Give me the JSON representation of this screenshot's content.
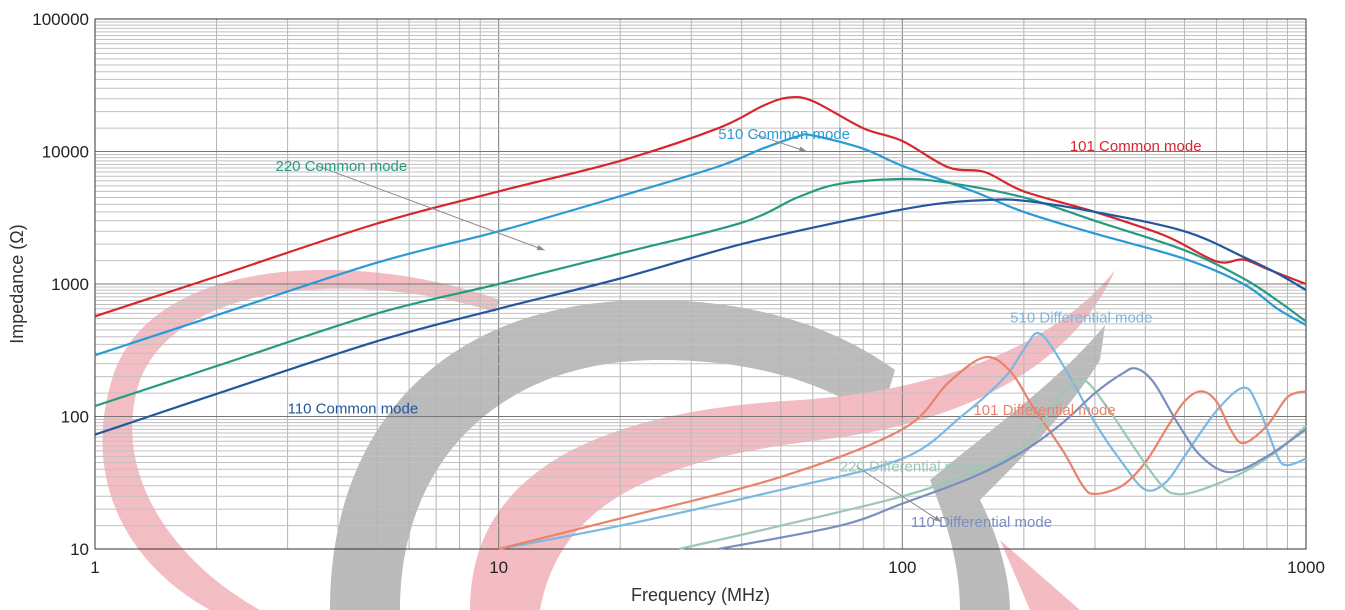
{
  "chart_data": {
    "type": "line",
    "title": "",
    "xlabel": "Frequency (MHz)",
    "ylabel": "Impedance (Ω)",
    "x_scale": "log",
    "y_scale": "log",
    "xlim": [
      1,
      1000
    ],
    "ylim": [
      10,
      100000
    ],
    "grid": true,
    "x_ticks": [
      {
        "value": 1,
        "label": "1"
      },
      {
        "value": 10,
        "label": "10"
      },
      {
        "value": 100,
        "label": "100"
      },
      {
        "value": 1000,
        "label": "1000"
      }
    ],
    "y_ticks": [
      {
        "value": 10,
        "label": "10"
      },
      {
        "value": 100,
        "label": "100"
      },
      {
        "value": 1000,
        "label": "1000"
      },
      {
        "value": 10000,
        "label": "10000"
      },
      {
        "value": 100000,
        "label": "100000"
      }
    ],
    "series": [
      {
        "name": "101 Common mode",
        "color": "#d7262e",
        "label_pos": [
          260,
          11000
        ],
        "points": [
          [
            1,
            570
          ],
          [
            2,
            1140
          ],
          [
            5,
            2860
          ],
          [
            10,
            5000
          ],
          [
            20,
            8500
          ],
          [
            35,
            15000
          ],
          [
            45,
            22000
          ],
          [
            52,
            25500
          ],
          [
            60,
            24000
          ],
          [
            80,
            15000
          ],
          [
            100,
            12000
          ],
          [
            130,
            7600
          ],
          [
            160,
            7000
          ],
          [
            200,
            5000
          ],
          [
            300,
            3500
          ],
          [
            450,
            2300
          ],
          [
            600,
            1480
          ],
          [
            700,
            1530
          ],
          [
            800,
            1300
          ],
          [
            1000,
            1000
          ]
        ]
      },
      {
        "name": "510 Common mode",
        "color": "#2a9ad6",
        "label_pos": [
          35,
          13500
        ],
        "leader": [
          [
            43,
            13500
          ],
          [
            58,
            10000
          ]
        ],
        "points": [
          [
            1,
            290
          ],
          [
            2,
            580
          ],
          [
            5,
            1450
          ],
          [
            10,
            2500
          ],
          [
            20,
            4600
          ],
          [
            35,
            7700
          ],
          [
            45,
            10500
          ],
          [
            55,
            13000
          ],
          [
            60,
            13200
          ],
          [
            80,
            10500
          ],
          [
            100,
            7800
          ],
          [
            150,
            5000
          ],
          [
            200,
            3500
          ],
          [
            300,
            2400
          ],
          [
            500,
            1550
          ],
          [
            700,
            1000
          ],
          [
            850,
            650
          ],
          [
            1000,
            490
          ]
        ]
      },
      {
        "name": "220 Common mode",
        "color": "#269b82",
        "label_pos": [
          2.8,
          7800
        ],
        "leader": [
          [
            3.55,
            7800
          ],
          [
            13,
            1800
          ]
        ],
        "points": [
          [
            1,
            120
          ],
          [
            2,
            240
          ],
          [
            5,
            600
          ],
          [
            10,
            1000
          ],
          [
            20,
            1700
          ],
          [
            40,
            2900
          ],
          [
            55,
            4500
          ],
          [
            70,
            5700
          ],
          [
            100,
            6200
          ],
          [
            130,
            5800
          ],
          [
            200,
            4500
          ],
          [
            300,
            3000
          ],
          [
            500,
            1800
          ],
          [
            700,
            1100
          ],
          [
            850,
            750
          ],
          [
            1000,
            520
          ]
        ]
      },
      {
        "name": "110 Common mode",
        "color": "#23579f",
        "label_pos": [
          3.0,
          115
        ],
        "points": [
          [
            1,
            73
          ],
          [
            2,
            148
          ],
          [
            5,
            370
          ],
          [
            10,
            650
          ],
          [
            20,
            1100
          ],
          [
            40,
            2000
          ],
          [
            80,
            3200
          ],
          [
            120,
            4000
          ],
          [
            160,
            4300
          ],
          [
            200,
            4250
          ],
          [
            300,
            3500
          ],
          [
            500,
            2500
          ],
          [
            700,
            1600
          ],
          [
            850,
            1200
          ],
          [
            1000,
            900
          ]
        ]
      },
      {
        "name": "510 Differential mode",
        "color": "#7cb8e1",
        "label_pos": [
          185,
          560
        ],
        "points": [
          [
            10,
            10
          ],
          [
            20,
            15
          ],
          [
            50,
            28
          ],
          [
            100,
            48
          ],
          [
            140,
            100
          ],
          [
            180,
            200
          ],
          [
            200,
            320
          ],
          [
            220,
            420
          ],
          [
            260,
            200
          ],
          [
            300,
            90
          ],
          [
            350,
            45
          ],
          [
            400,
            28
          ],
          [
            450,
            32
          ],
          [
            500,
            50
          ],
          [
            600,
            110
          ],
          [
            700,
            165
          ],
          [
            760,
            120
          ],
          [
            850,
            50
          ],
          [
            900,
            43
          ],
          [
            1000,
            48
          ]
        ]
      },
      {
        "name": "101 Differential mode",
        "color": "#e9836b",
        "label_pos": [
          150,
          112
        ],
        "points": [
          [
            10,
            10
          ],
          [
            20,
            17
          ],
          [
            50,
            35
          ],
          [
            100,
            80
          ],
          [
            130,
            180
          ],
          [
            160,
            280
          ],
          [
            185,
            220
          ],
          [
            210,
            120
          ],
          [
            250,
            55
          ],
          [
            280,
            30
          ],
          [
            300,
            26
          ],
          [
            350,
            30
          ],
          [
            400,
            45
          ],
          [
            450,
            80
          ],
          [
            500,
            130
          ],
          [
            550,
            155
          ],
          [
            600,
            130
          ],
          [
            650,
            80
          ],
          [
            700,
            63
          ],
          [
            800,
            85
          ],
          [
            900,
            140
          ],
          [
            1000,
            155
          ]
        ]
      },
      {
        "name": "220  Differential mode",
        "color": "#9cc7b6",
        "label_pos": [
          70,
          42
        ],
        "leader": [
          [
            77,
            42
          ],
          [
            125,
            16
          ]
        ],
        "points": [
          [
            28,
            10
          ],
          [
            50,
            15
          ],
          [
            100,
            25
          ],
          [
            150,
            38
          ],
          [
            200,
            60
          ],
          [
            250,
            150
          ],
          [
            280,
            190
          ],
          [
            320,
            120
          ],
          [
            380,
            55
          ],
          [
            440,
            30
          ],
          [
            480,
            26
          ],
          [
            550,
            28
          ],
          [
            700,
            38
          ],
          [
            850,
            55
          ],
          [
            1000,
            85
          ]
        ]
      },
      {
        "name": "110 Differential mode",
        "color": "#7a8ec0",
        "label_pos": [
          105,
          16
        ],
        "points": [
          [
            35,
            10
          ],
          [
            70,
            15
          ],
          [
            100,
            22
          ],
          [
            150,
            35
          ],
          [
            200,
            55
          ],
          [
            250,
            90
          ],
          [
            300,
            150
          ],
          [
            350,
            210
          ],
          [
            380,
            230
          ],
          [
            420,
            180
          ],
          [
            480,
            90
          ],
          [
            550,
            50
          ],
          [
            650,
            38
          ],
          [
            800,
            50
          ],
          [
            1000,
            80
          ]
        ]
      }
    ]
  }
}
